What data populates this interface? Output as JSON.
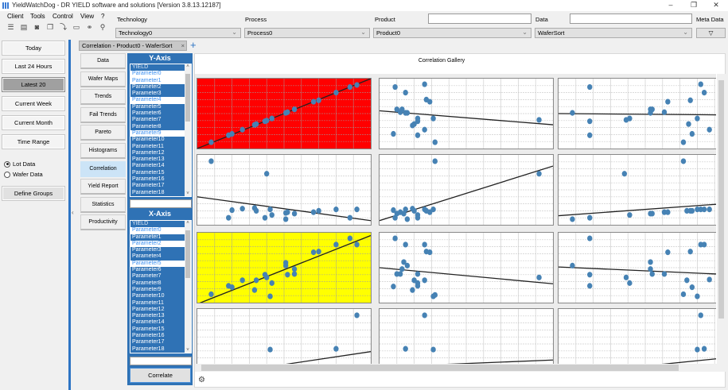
{
  "window": {
    "title": "YieldWatchDog - DR YIELD software and solutions [Version 3.8.13.12187]",
    "minimize": "–",
    "maximize": "❐",
    "close": "✕"
  },
  "menu": [
    "Client",
    "Tools",
    "Control",
    "View",
    "?"
  ],
  "toolbar_icons": [
    "list-icon",
    "import-icon",
    "camera-icon",
    "copy-icon",
    "wand-icon",
    "windows-icon",
    "link-icon",
    "search-icon"
  ],
  "toolbar_glyphs": [
    "☰",
    "▤",
    "◙",
    "❐",
    "⤵",
    "▭",
    "⚭",
    "⚲"
  ],
  "filters": {
    "technology": {
      "label": "Technology",
      "value": "Technology0"
    },
    "process": {
      "label": "Process",
      "value": "Process0"
    },
    "product": {
      "label": "Product",
      "value": "Product0",
      "search": ""
    },
    "data": {
      "label": "Data",
      "value": "WaferSort",
      "search": ""
    },
    "meta": {
      "label": "Meta Data",
      "icon": "filter-icon",
      "glyph": "▽"
    }
  },
  "left_panel": {
    "buttons": [
      "Today",
      "Last 24 Hours",
      "Latest 20",
      "Current Week",
      "Current Month",
      "Time Range"
    ],
    "active": "Latest 20",
    "radios": [
      {
        "label": "Lot Data",
        "checked": true
      },
      {
        "label": "Wafer Data",
        "checked": false
      }
    ],
    "define_groups": "Define Groups",
    "collapse": "‹"
  },
  "tab": {
    "label": "Correlation - Product0 - WaferSort",
    "close": "×",
    "add": "+"
  },
  "nav": [
    "Data",
    "Wafer Maps",
    "Trends",
    "Fail Trends",
    "Pareto",
    "Histograms",
    "Correlation",
    "Yield Report",
    "Statistics",
    "Productivity"
  ],
  "nav_active": "Correlation",
  "y_axis": {
    "title": "Y-Axis",
    "items": [
      "YIELD",
      "Parameter0",
      "Parameter1",
      "Parameter2",
      "Parameter3",
      "Parameter4",
      "Parameter5",
      "Parameter6",
      "Parameter7",
      "Parameter8",
      "Parameter9",
      "Parameter10",
      "Parameter11",
      "Parameter12",
      "Parameter13",
      "Parameter14",
      "Parameter15",
      "Parameter16",
      "Parameter17",
      "Parameter18"
    ],
    "selected": [
      "Parameter0",
      "Parameter1",
      "Parameter4",
      "Parameter9"
    ],
    "search": ""
  },
  "x_axis": {
    "title": "X-Axis",
    "items": [
      "YIELD",
      "Parameter0",
      "Parameter1",
      "Parameter2",
      "Parameter3",
      "Parameter4",
      "Parameter5",
      "Parameter6",
      "Parameter7",
      "Parameter8",
      "Parameter9",
      "Parameter10",
      "Parameter11",
      "Parameter12",
      "Parameter13",
      "Parameter14",
      "Parameter15",
      "Parameter16",
      "Parameter17",
      "Parameter18"
    ],
    "selected": [
      "Parameter0",
      "Parameter2",
      "Parameter5"
    ],
    "search": ""
  },
  "correlate_button": "Correlate",
  "gallery": {
    "title": "Correlation Gallery",
    "point_color": "#4682b4",
    "cells": [
      {
        "bg": "#ff0000",
        "line": [
          0,
          0,
          100,
          100
        ],
        "points": [
          [
            8,
            9
          ],
          [
            18,
            19
          ],
          [
            20,
            21
          ],
          [
            26,
            27
          ],
          [
            33,
            34
          ],
          [
            34,
            35
          ],
          [
            39,
            39
          ],
          [
            40,
            40
          ],
          [
            43,
            43
          ],
          [
            51,
            51
          ],
          [
            52,
            52
          ],
          [
            56,
            56
          ],
          [
            67,
            67
          ],
          [
            70,
            69
          ],
          [
            80,
            80
          ],
          [
            88,
            88
          ],
          [
            92,
            91
          ]
        ]
      },
      {
        "bg": "#ffffff",
        "line": [
          0,
          54,
          100,
          34
        ],
        "points": [
          [
            9,
            88
          ],
          [
            26,
            92
          ],
          [
            15,
            80
          ],
          [
            27,
            70
          ],
          [
            29,
            67
          ],
          [
            10,
            56
          ],
          [
            13,
            56
          ],
          [
            12,
            52
          ],
          [
            15,
            51
          ],
          [
            16,
            51
          ],
          [
            22,
            43
          ],
          [
            22,
            39
          ],
          [
            31,
            43
          ],
          [
            20,
            35
          ],
          [
            19,
            33
          ],
          [
            26,
            27
          ],
          [
            8,
            21
          ],
          [
            22,
            19
          ],
          [
            32,
            9
          ],
          [
            92,
            41
          ]
        ]
      },
      {
        "bg": "#ffffff",
        "line": [
          0,
          50,
          100,
          48
        ],
        "points": [
          [
            18,
            88
          ],
          [
            82,
            92
          ],
          [
            84,
            80
          ],
          [
            63,
            67
          ],
          [
            76,
            69
          ],
          [
            8,
            51
          ],
          [
            53,
            56
          ],
          [
            54,
            56
          ],
          [
            53,
            51
          ],
          [
            61,
            52
          ],
          [
            18,
            39
          ],
          [
            39,
            41
          ],
          [
            41,
            43
          ],
          [
            75,
            35
          ],
          [
            80,
            43
          ],
          [
            18,
            19
          ],
          [
            77,
            21
          ],
          [
            87,
            27
          ],
          [
            72,
            9
          ]
        ]
      },
      {
        "bg": "#ffffff",
        "line": [
          0,
          40,
          100,
          6
        ],
        "points": [
          [
            8,
            91
          ],
          [
            40,
            73
          ],
          [
            20,
            21
          ],
          [
            26,
            23
          ],
          [
            33,
            24
          ],
          [
            34,
            20
          ],
          [
            42,
            22
          ],
          [
            18,
            10
          ],
          [
            39,
            10
          ],
          [
            43,
            14
          ],
          [
            51,
            17
          ],
          [
            52,
            18
          ],
          [
            56,
            16
          ],
          [
            67,
            18
          ],
          [
            70,
            20
          ],
          [
            80,
            22
          ],
          [
            92,
            22
          ],
          [
            51,
            8
          ],
          [
            88,
            10
          ]
        ]
      },
      {
        "bg": "#ffffff",
        "line": [
          0,
          6,
          100,
          84
        ],
        "points": [
          [
            32,
            91
          ],
          [
            92,
            73
          ],
          [
            8,
            21
          ],
          [
            10,
            16
          ],
          [
            12,
            18
          ],
          [
            14,
            16
          ],
          [
            15,
            22
          ],
          [
            19,
            23
          ],
          [
            20,
            20
          ],
          [
            26,
            22
          ],
          [
            27,
            20
          ],
          [
            29,
            18
          ],
          [
            31,
            22
          ],
          [
            9,
            10
          ],
          [
            16,
            8
          ],
          [
            22,
            14
          ],
          [
            22,
            10
          ]
        ]
      },
      {
        "bg": "#ffffff",
        "line": [
          0,
          13,
          100,
          31
        ],
        "points": [
          [
            72,
            91
          ],
          [
            38,
            73
          ],
          [
            8,
            8
          ],
          [
            18,
            10
          ],
          [
            41,
            14
          ],
          [
            53,
            16
          ],
          [
            54,
            16
          ],
          [
            61,
            18
          ],
          [
            63,
            18
          ],
          [
            74,
            20
          ],
          [
            76,
            20
          ],
          [
            77,
            20
          ],
          [
            80,
            22
          ],
          [
            82,
            22
          ],
          [
            84,
            22
          ],
          [
            87,
            22
          ]
        ]
      },
      {
        "bg": "#ffff00",
        "line": [
          0,
          -2,
          100,
          96
        ],
        "points": [
          [
            8,
            12
          ],
          [
            18,
            24
          ],
          [
            20,
            22
          ],
          [
            26,
            32
          ],
          [
            33,
            18
          ],
          [
            34,
            32
          ],
          [
            39,
            40
          ],
          [
            40,
            36
          ],
          [
            43,
            28
          ],
          [
            42,
            9
          ],
          [
            51,
            53
          ],
          [
            51,
            57
          ],
          [
            52,
            40
          ],
          [
            56,
            48
          ],
          [
            56,
            41
          ],
          [
            67,
            72
          ],
          [
            70,
            73
          ],
          [
            80,
            83
          ],
          [
            88,
            92
          ],
          [
            92,
            83
          ]
        ]
      },
      {
        "bg": "#ffffff",
        "line": [
          0,
          50,
          100,
          27
        ],
        "points": [
          [
            9,
            92
          ],
          [
            15,
            83
          ],
          [
            26,
            83
          ],
          [
            27,
            73
          ],
          [
            29,
            72
          ],
          [
            14,
            58
          ],
          [
            16,
            53
          ],
          [
            13,
            48
          ],
          [
            10,
            41
          ],
          [
            12,
            41
          ],
          [
            22,
            41
          ],
          [
            20,
            32
          ],
          [
            26,
            32
          ],
          [
            22,
            28
          ],
          [
            22,
            24
          ],
          [
            8,
            23
          ],
          [
            19,
            18
          ],
          [
            31,
            9
          ],
          [
            32,
            11
          ],
          [
            92,
            36
          ]
        ]
      },
      {
        "bg": "#ffffff",
        "line": [
          0,
          51,
          100,
          40
        ],
        "points": [
          [
            18,
            92
          ],
          [
            82,
            83
          ],
          [
            84,
            83
          ],
          [
            63,
            72
          ],
          [
            76,
            73
          ],
          [
            8,
            53
          ],
          [
            53,
            58
          ],
          [
            53,
            48
          ],
          [
            54,
            41
          ],
          [
            61,
            41
          ],
          [
            18,
            40
          ],
          [
            39,
            36
          ],
          [
            41,
            28
          ],
          [
            18,
            24
          ],
          [
            74,
            32
          ],
          [
            77,
            22
          ],
          [
            87,
            33
          ],
          [
            72,
            12
          ],
          [
            80,
            9
          ]
        ]
      },
      {
        "bg": "#ffffff",
        "line": [
          0,
          2,
          100,
          39
        ],
        "points": [
          [
            92,
            91
          ],
          [
            42,
            42
          ],
          [
            80,
            43
          ],
          [
            26,
            12
          ],
          [
            39,
            10
          ],
          [
            18,
            8
          ]
        ]
      },
      {
        "bg": "#ffffff",
        "line": [
          0,
          17,
          100,
          27
        ],
        "points": [
          [
            26,
            91
          ],
          [
            15,
            43
          ],
          [
            31,
            42
          ],
          [
            8,
            12
          ],
          [
            22,
            10
          ]
        ]
      },
      {
        "bg": "#ffffff",
        "line": [
          0,
          6,
          100,
          31
        ],
        "points": [
          [
            82,
            91
          ],
          [
            80,
            42
          ],
          [
            84,
            43
          ],
          [
            18,
            12
          ]
        ]
      }
    ]
  }
}
